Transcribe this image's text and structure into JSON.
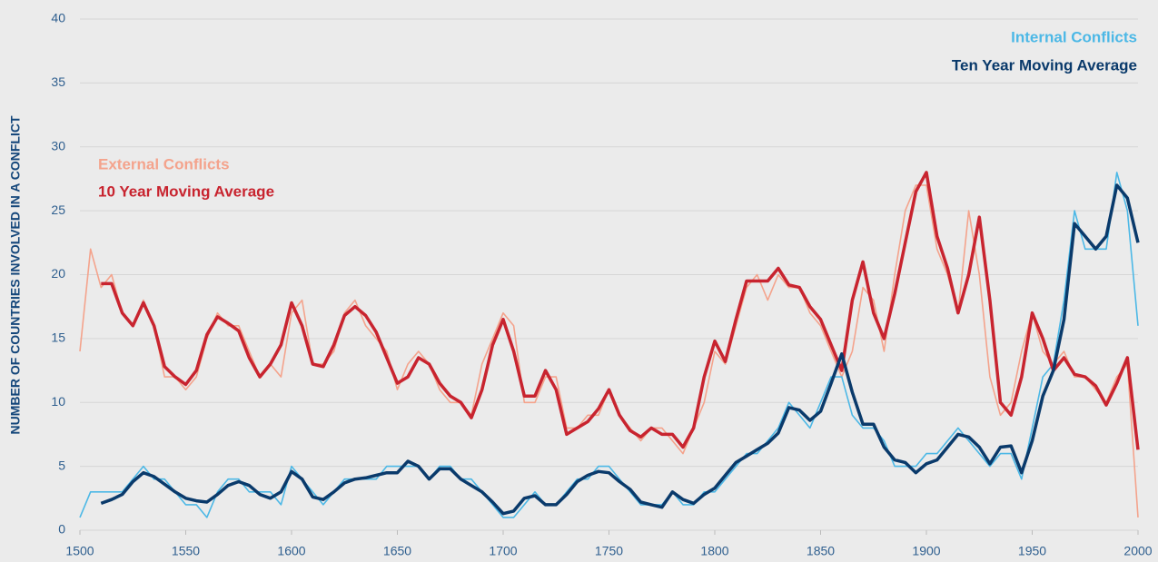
{
  "chart_data": {
    "type": "line",
    "y_label": "NUMBER OF COUNTRIES  INVOLVED IN A CONFLICT",
    "x": [
      1500,
      1505,
      1510,
      1515,
      1520,
      1525,
      1530,
      1535,
      1540,
      1545,
      1550,
      1555,
      1560,
      1565,
      1570,
      1575,
      1580,
      1585,
      1590,
      1595,
      1600,
      1605,
      1610,
      1615,
      1620,
      1625,
      1630,
      1635,
      1640,
      1645,
      1650,
      1655,
      1660,
      1665,
      1670,
      1675,
      1680,
      1685,
      1690,
      1695,
      1700,
      1705,
      1710,
      1715,
      1720,
      1725,
      1730,
      1735,
      1740,
      1745,
      1750,
      1755,
      1760,
      1765,
      1770,
      1775,
      1780,
      1785,
      1790,
      1795,
      1800,
      1805,
      1810,
      1815,
      1820,
      1825,
      1830,
      1835,
      1840,
      1845,
      1850,
      1855,
      1860,
      1865,
      1870,
      1875,
      1880,
      1885,
      1890,
      1895,
      1900,
      1905,
      1910,
      1915,
      1920,
      1925,
      1930,
      1935,
      1940,
      1945,
      1950,
      1955,
      1960,
      1965,
      1970,
      1975,
      1980,
      1985,
      1990,
      1995,
      2000
    ],
    "series": [
      {
        "name": "External Conflicts",
        "color": "#f4a38c",
        "values": [
          14,
          22,
          19,
          20,
          17,
          16,
          18,
          16,
          12,
          12,
          11,
          12,
          15,
          17,
          16,
          16,
          14,
          12,
          13,
          12,
          17,
          18,
          13,
          13,
          14,
          17,
          18,
          16,
          15,
          14,
          11,
          13,
          14,
          13,
          11,
          10,
          10,
          9,
          13,
          15,
          17,
          16,
          10,
          10,
          12,
          12,
          8,
          8,
          9,
          9,
          11,
          9,
          8,
          7,
          8,
          8,
          7,
          6,
          8,
          10,
          14,
          13,
          16,
          19,
          20,
          18,
          20,
          19,
          19,
          17,
          16,
          14,
          12,
          14,
          19,
          18,
          14,
          20,
          25,
          27,
          27,
          22,
          20,
          17,
          25,
          20,
          12,
          9,
          10,
          14,
          17,
          14,
          13,
          14,
          12,
          12,
          11,
          10,
          12,
          13,
          1
        ]
      },
      {
        "name": "10 Year Moving Average",
        "color": "#c8242f",
        "values": [
          null,
          null,
          19.3,
          19.3,
          17.0,
          16.0,
          17.8,
          16.0,
          12.8,
          12.0,
          11.4,
          12.5,
          15.3,
          16.7,
          16.2,
          15.6,
          13.5,
          12.0,
          13.0,
          14.5,
          17.8,
          16.0,
          13.0,
          12.8,
          14.5,
          16.8,
          17.5,
          16.8,
          15.5,
          13.5,
          11.5,
          12.0,
          13.5,
          13.0,
          11.5,
          10.5,
          10.0,
          8.8,
          11.0,
          14.5,
          16.5,
          14.0,
          10.5,
          10.5,
          12.5,
          11.0,
          7.5,
          8.0,
          8.5,
          9.5,
          11.0,
          9.0,
          7.8,
          7.3,
          8.0,
          7.5,
          7.5,
          6.5,
          8.0,
          12.0,
          14.8,
          13.2,
          16.5,
          19.5,
          19.5,
          19.5,
          20.5,
          19.2,
          19.0,
          17.5,
          16.5,
          14.5,
          12.5,
          18.0,
          21.0,
          17.0,
          15.0,
          18.5,
          22.5,
          26.5,
          28.0,
          23.0,
          20.5,
          17.0,
          20.0,
          24.5,
          18.0,
          10.0,
          9.0,
          12.0,
          17.0,
          15.0,
          12.5,
          13.5,
          12.2,
          12.0,
          11.3,
          9.8,
          11.5,
          13.5,
          6.3
        ]
      },
      {
        "name": "Internal Conflicts",
        "color": "#4cb8e6",
        "values": [
          1,
          3,
          3,
          3,
          3,
          4,
          5,
          4,
          4,
          3,
          2,
          2,
          1,
          3,
          4,
          4,
          3,
          3,
          3,
          2,
          5,
          4,
          3,
          2,
          3,
          4,
          4,
          4,
          4,
          5,
          5,
          5,
          5,
          4,
          5,
          5,
          4,
          4,
          3,
          2,
          1,
          1,
          2,
          3,
          2,
          2,
          3,
          4,
          4,
          5,
          5,
          4,
          3,
          2,
          2,
          2,
          3,
          2,
          2,
          3,
          3,
          4,
          5,
          6,
          6,
          7,
          8,
          10,
          9,
          8,
          10,
          12,
          12,
          9,
          8,
          8,
          7,
          5,
          5,
          5,
          6,
          6,
          7,
          8,
          7,
          6,
          5,
          6,
          6,
          4,
          8,
          12,
          13,
          18,
          25,
          22,
          22,
          22,
          28,
          25,
          16
        ]
      },
      {
        "name": "Ten Year Moving Average",
        "color": "#0a3a6b",
        "values": [
          null,
          null,
          2.1,
          2.4,
          2.8,
          3.8,
          4.5,
          4.2,
          3.6,
          3.0,
          2.5,
          2.3,
          2.2,
          2.8,
          3.5,
          3.8,
          3.5,
          2.8,
          2.5,
          3.0,
          4.6,
          4.0,
          2.6,
          2.4,
          3.0,
          3.7,
          4.0,
          4.1,
          4.3,
          4.5,
          4.5,
          5.4,
          5.0,
          4.0,
          4.8,
          4.8,
          4.0,
          3.5,
          3.0,
          2.2,
          1.3,
          1.5,
          2.5,
          2.7,
          2.0,
          2.0,
          2.8,
          3.8,
          4.3,
          4.6,
          4.5,
          3.8,
          3.2,
          2.2,
          2.0,
          1.8,
          3.0,
          2.4,
          2.1,
          2.8,
          3.3,
          4.3,
          5.3,
          5.8,
          6.3,
          6.8,
          7.6,
          9.6,
          9.4,
          8.6,
          9.3,
          11.5,
          13.8,
          10.8,
          8.3,
          8.3,
          6.5,
          5.5,
          5.3,
          4.5,
          5.2,
          5.5,
          6.5,
          7.5,
          7.3,
          6.5,
          5.2,
          6.5,
          6.6,
          4.5,
          7.0,
          10.5,
          12.5,
          16.5,
          24.0,
          23.0,
          22.0,
          23.0,
          27.0,
          26.0,
          22.5
        ]
      }
    ],
    "xlim": [
      1500,
      2000
    ],
    "xticks": [
      1500,
      1550,
      1600,
      1650,
      1700,
      1750,
      1800,
      1850,
      1900,
      1950,
      2000
    ],
    "ylim": [
      0,
      40
    ],
    "yticks": [
      0,
      5,
      10,
      15,
      20,
      25,
      30,
      35,
      40
    ],
    "grid": true
  }
}
